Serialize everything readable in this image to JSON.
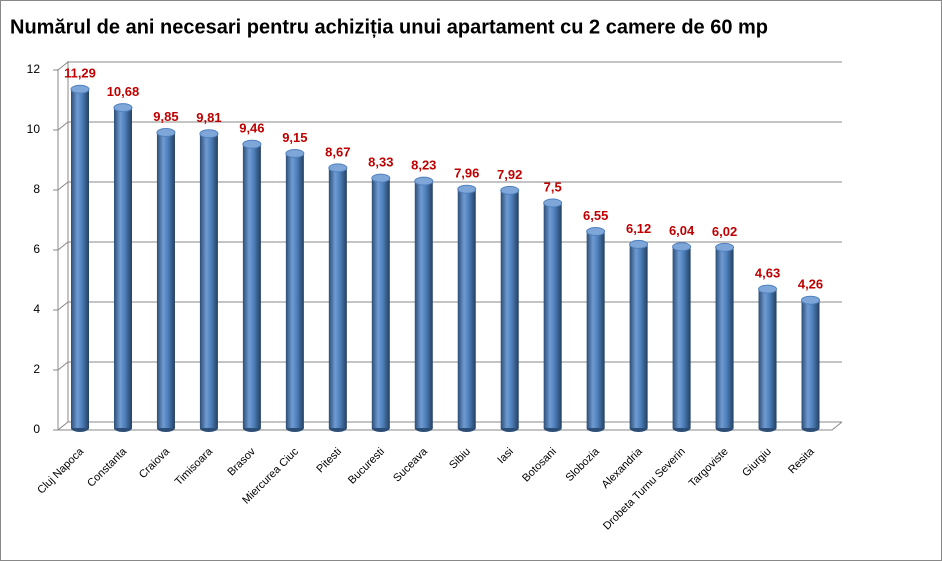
{
  "chart_data": {
    "type": "bar",
    "title": "Numărul de ani necesari pentru achiziția unui apartament cu 2 camere de 60 mp",
    "categories": [
      "Cluj Napoca",
      "Constanta",
      "Craiova",
      "Timisoara",
      "Brasov",
      "Miercurea Ciuc",
      "Pitesti",
      "Bucuresti",
      "Suceava",
      "Sibiu",
      "Iasi",
      "Botosani",
      "Slobozia",
      "Alexandria",
      "Drobeta Turnu Severin",
      "Targoviste",
      "Giurgiu",
      "Resita"
    ],
    "values": [
      11.29,
      10.68,
      9.85,
      9.81,
      9.46,
      9.15,
      8.67,
      8.33,
      8.23,
      7.96,
      7.92,
      7.5,
      6.55,
      6.12,
      6.04,
      6.02,
      4.63,
      4.26
    ],
    "value_labels": [
      "11,29",
      "10,68",
      "9,85",
      "9,81",
      "9,46",
      "9,15",
      "8,67",
      "8,33",
      "8,23",
      "7,96",
      "7,92",
      "7,5",
      "6,55",
      "6,12",
      "6,04",
      "6,02",
      "4,63",
      "4,26"
    ],
    "color": "#4f81bd",
    "ylim": [
      0,
      12
    ],
    "yticks": [
      0,
      2,
      4,
      6,
      8,
      10,
      12
    ],
    "grid": true
  }
}
